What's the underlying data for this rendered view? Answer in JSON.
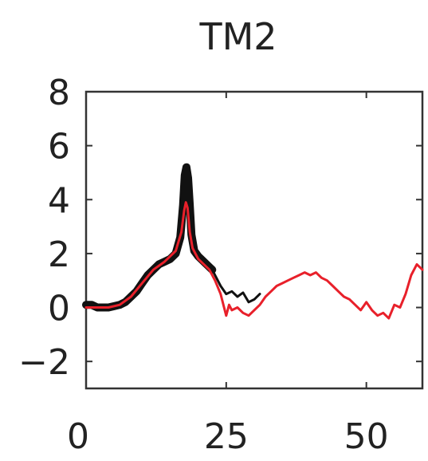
{
  "chart_data": {
    "type": "line",
    "title": "TM2",
    "xlabel": "",
    "ylabel": "",
    "xlim": [
      0,
      60
    ],
    "ylim": [
      -3,
      8
    ],
    "x_ticks": [
      0,
      25,
      50
    ],
    "y_ticks": [
      8,
      6,
      4,
      2,
      0,
      -2
    ],
    "y_tick_labels": [
      "8",
      "6",
      "4",
      "2",
      "0",
      "−2"
    ],
    "grid": false,
    "colors": {
      "black_series": "#111111",
      "red_series": "#e8202a"
    },
    "series": [
      {
        "color": "#111111",
        "style": "thick",
        "points": [
          [
            0,
            0.1
          ],
          [
            1,
            0.1
          ],
          [
            2,
            0.0
          ],
          [
            3,
            0.0
          ],
          [
            4,
            0.0
          ],
          [
            5,
            0.05
          ],
          [
            6,
            0.1
          ],
          [
            7,
            0.2
          ],
          [
            8,
            0.4
          ],
          [
            9,
            0.6
          ],
          [
            10,
            0.9
          ],
          [
            11,
            1.2
          ],
          [
            12,
            1.4
          ],
          [
            13,
            1.6
          ],
          [
            14,
            1.7
          ],
          [
            15,
            1.8
          ],
          [
            16,
            2.0
          ],
          [
            16.8,
            2.6
          ],
          [
            17.3,
            3.8
          ],
          [
            17.6,
            4.9
          ],
          [
            17.9,
            5.2
          ],
          [
            18.2,
            4.8
          ],
          [
            18.5,
            3.8
          ],
          [
            18.8,
            2.7
          ],
          [
            19.3,
            2.1
          ],
          [
            20,
            1.9
          ],
          [
            21,
            1.7
          ],
          [
            22,
            1.5
          ],
          [
            22.5,
            1.4
          ]
        ]
      },
      {
        "color": "#111111",
        "style": "thin",
        "points": [
          [
            22.5,
            1.4
          ],
          [
            23,
            1.2
          ],
          [
            24,
            0.8
          ],
          [
            25,
            0.5
          ],
          [
            26,
            0.6
          ],
          [
            27,
            0.4
          ],
          [
            28,
            0.55
          ],
          [
            29,
            0.2
          ],
          [
            30,
            0.3
          ],
          [
            31,
            0.5
          ]
        ]
      },
      {
        "color": "#e8202a",
        "style": "thin",
        "points": [
          [
            0,
            0.0
          ],
          [
            2,
            0.0
          ],
          [
            4,
            0.0
          ],
          [
            6,
            0.1
          ],
          [
            8,
            0.4
          ],
          [
            10,
            0.9
          ],
          [
            12,
            1.4
          ],
          [
            14,
            1.7
          ],
          [
            16,
            2.1
          ],
          [
            17,
            2.8
          ],
          [
            17.5,
            3.6
          ],
          [
            17.8,
            3.9
          ],
          [
            18.1,
            3.7
          ],
          [
            18.5,
            2.8
          ],
          [
            19,
            2.2
          ],
          [
            20,
            1.8
          ],
          [
            21,
            1.6
          ],
          [
            22,
            1.4
          ],
          [
            23,
            1.0
          ],
          [
            24,
            0.5
          ],
          [
            24.5,
            0.1
          ],
          [
            25,
            -0.3
          ],
          [
            25.5,
            0.1
          ],
          [
            26,
            -0.1
          ],
          [
            27,
            0.0
          ],
          [
            28,
            -0.2
          ],
          [
            29,
            -0.3
          ],
          [
            30,
            -0.1
          ],
          [
            31,
            0.1
          ],
          [
            32,
            0.4
          ],
          [
            33,
            0.6
          ],
          [
            34,
            0.8
          ],
          [
            35,
            0.9
          ],
          [
            36,
            1.0
          ],
          [
            37,
            1.1
          ],
          [
            38,
            1.2
          ],
          [
            39,
            1.3
          ],
          [
            40,
            1.2
          ],
          [
            41,
            1.3
          ],
          [
            42,
            1.1
          ],
          [
            43,
            1.0
          ],
          [
            44,
            0.8
          ],
          [
            45,
            0.6
          ],
          [
            46,
            0.4
          ],
          [
            47,
            0.3
          ],
          [
            48,
            0.1
          ],
          [
            49,
            -0.1
          ],
          [
            50,
            0.2
          ],
          [
            51,
            -0.1
          ],
          [
            52,
            -0.3
          ],
          [
            53,
            -0.2
          ],
          [
            54,
            -0.4
          ],
          [
            55,
            0.1
          ],
          [
            56,
            0.0
          ],
          [
            57,
            0.5
          ],
          [
            58,
            1.2
          ],
          [
            59,
            1.6
          ],
          [
            60,
            1.4
          ]
        ]
      }
    ]
  }
}
